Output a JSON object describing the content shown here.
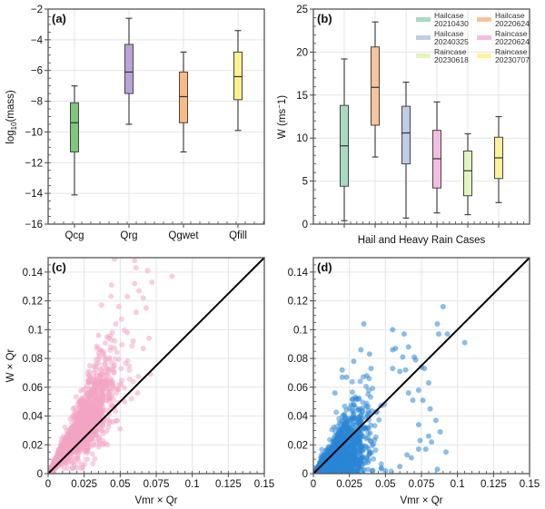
{
  "chart_data": [
    {
      "panel": "(a)",
      "type": "box",
      "title": "",
      "xlabel": "",
      "ylabel": "log10(mass)",
      "ylabel_main": "log",
      "ylabel_sub": "10",
      "ylabel_rest": "(mass)",
      "ylim": [
        -16,
        -2
      ],
      "yticks": [
        -16,
        -14,
        -12,
        -10,
        -8,
        -6,
        -4,
        -2
      ],
      "ytick_labels": [
        "−16",
        "−14",
        "−12",
        "−10",
        "−8",
        "−6",
        "−4",
        "−2"
      ],
      "grid": true,
      "categories": [
        "Qcg",
        "Qrg",
        "Qgwet",
        "Qfill"
      ],
      "boxes": [
        {
          "name": "Qcg",
          "whislo": -14.1,
          "q1": -11.3,
          "med": -9.4,
          "q3": -8.1,
          "whishi": -7.0,
          "color": "#7dc87a"
        },
        {
          "name": "Qrg",
          "whislo": -9.5,
          "q1": -7.5,
          "med": -6.1,
          "q3": -4.3,
          "whishi": -2.6,
          "color": "#b7a6d4"
        },
        {
          "name": "Qgwet",
          "whislo": -11.3,
          "q1": -9.4,
          "med": -7.7,
          "q3": -6.1,
          "whishi": -4.8,
          "color": "#f9bb84"
        },
        {
          "name": "Qfill",
          "whislo": -9.9,
          "q1": -7.9,
          "med": -6.4,
          "q3": -4.8,
          "whishi": -3.4,
          "color": "#fdf08f"
        }
      ]
    },
    {
      "panel": "(b)",
      "type": "box",
      "title": "",
      "xlabel": "Hail and Heavy Rain Cases",
      "ylabel": "W (ms⁻1)",
      "ylabel_main": "W (ms",
      "ylabel_sup": "−",
      "ylabel_rest": "1)",
      "ylim": [
        0,
        25
      ],
      "yticks": [
        0,
        5,
        10,
        15,
        20,
        25
      ],
      "ytick_labels": [
        "0",
        "5",
        "10",
        "15",
        "20",
        "25"
      ],
      "grid": true,
      "legend_position": "top-right",
      "boxes": [
        {
          "name": "Hailcase 20210430",
          "whislo": 0.4,
          "q1": 4.4,
          "med": 9.1,
          "q3": 13.8,
          "whishi": 19.2,
          "color": "#a8dcc0"
        },
        {
          "name": "Hailcase 20220624",
          "whislo": 7.8,
          "q1": 11.5,
          "med": 15.9,
          "q3": 20.6,
          "whishi": 23.5,
          "color": "#f9c39c"
        },
        {
          "name": "Hailcase 20240325",
          "whislo": 0.7,
          "q1": 7.0,
          "med": 10.6,
          "q3": 13.7,
          "whishi": 16.5,
          "color": "#c0cbe5"
        },
        {
          "name": "Raincase 20220624",
          "whislo": 1.3,
          "q1": 4.2,
          "med": 7.6,
          "q3": 10.9,
          "whishi": 14.2,
          "color": "#f3bde0"
        },
        {
          "name": "Raincase 20230618",
          "whislo": 1.1,
          "q1": 3.3,
          "med": 6.2,
          "q3": 8.5,
          "whishi": 10.5,
          "color": "#e3f4bf"
        },
        {
          "name": "Raincase 20230707",
          "whislo": 2.5,
          "q1": 5.3,
          "med": 7.7,
          "q3": 10.1,
          "whishi": 12.5,
          "color": "#fdf29a"
        }
      ],
      "legend": [
        {
          "line1": "Hailcase",
          "line2": "20210430",
          "color": "#a8dcc0"
        },
        {
          "line1": "Hailcase",
          "line2": "20220624",
          "color": "#f9c39c"
        },
        {
          "line1": "Hailcase",
          "line2": "20240325",
          "color": "#c0cbe5"
        },
        {
          "line1": "Raincase",
          "line2": "20220624",
          "color": "#f3bde0"
        },
        {
          "line1": "Raincase",
          "line2": "20230618",
          "color": "#e3f4bf"
        },
        {
          "line1": "Raincase",
          "line2": "20230707",
          "color": "#fdf29a"
        }
      ]
    },
    {
      "panel": "(c)",
      "type": "scatter",
      "xlabel": "Vmr × Qr",
      "ylabel": "W  × Qr",
      "xlim": [
        0,
        0.15
      ],
      "ylim": [
        0,
        0.15
      ],
      "xticks": [
        0,
        0.025,
        0.05,
        0.075,
        0.1,
        0.125,
        0.15
      ],
      "xtick_labels": [
        "0",
        "0.025",
        "0.05",
        "0.075",
        "0.1",
        "0.125",
        "0.15"
      ],
      "yticks": [
        0,
        0.02,
        0.04,
        0.06,
        0.08,
        0.1,
        0.12,
        0.14
      ],
      "ytick_labels": [
        "0",
        "0.02",
        "0.04",
        "0.06",
        "0.08",
        "0.1",
        "0.12",
        "0.14"
      ],
      "grid": true,
      "color": "#f4a3c4",
      "reference_line": {
        "x": [
          0,
          0.15
        ],
        "y": [
          0,
          0.15
        ],
        "color": "#000000"
      },
      "cloud": {
        "n": 1400,
        "x_mean": 0.022,
        "x_sd": 0.012,
        "x_max": 0.075,
        "slope": 1.45,
        "y_sd_frac": 0.28,
        "seed": 7
      },
      "points": [
        [
          0.046,
          0.149
        ],
        [
          0.06,
          0.148
        ],
        [
          0.061,
          0.143
        ],
        [
          0.069,
          0.141
        ],
        [
          0.086,
          0.137
        ],
        [
          0.044,
          0.131
        ],
        [
          0.072,
          0.133
        ],
        [
          0.06,
          0.132
        ],
        [
          0.063,
          0.127
        ],
        [
          0.066,
          0.122
        ],
        [
          0.037,
          0.117
        ],
        [
          0.055,
          0.123
        ],
        [
          0.049,
          0.116
        ],
        [
          0.061,
          0.112
        ],
        [
          0.068,
          0.115
        ],
        [
          0.035,
          0.096
        ],
        [
          0.041,
          0.095
        ],
        [
          0.07,
          0.094
        ],
        [
          0.066,
          0.087
        ],
        [
          0.047,
          0.104
        ],
        [
          0.055,
          0.098
        ],
        [
          0.059,
          0.092
        ],
        [
          0.034,
          0.087
        ],
        [
          0.029,
          0.075
        ],
        [
          0.032,
          0.07
        ],
        [
          0.071,
          0.069
        ],
        [
          0.062,
          0.056
        ],
        [
          0.053,
          0.05
        ],
        [
          0.05,
          0.031
        ],
        [
          0.045,
          0.036
        ],
        [
          0.041,
          0.02
        ],
        [
          0.038,
          0.02
        ],
        [
          0.027,
          0.01
        ],
        [
          0.02,
          0.004
        ],
        [
          0.017,
          0.004
        ]
      ]
    },
    {
      "panel": "(d)",
      "type": "scatter",
      "xlabel": "Vmr  × Qr",
      "ylabel": "",
      "xlim": [
        0,
        0.15
      ],
      "ylim": [
        0,
        0.15
      ],
      "xticks": [
        0,
        0.025,
        0.05,
        0.075,
        0.1,
        0.125,
        0.15
      ],
      "xtick_labels": [
        "0",
        "0.025",
        "0.05",
        "0.075",
        "0.1",
        "0.125",
        "0.15"
      ],
      "yticks": [
        0,
        0.02,
        0.04,
        0.06,
        0.08,
        0.1,
        0.12,
        0.14
      ],
      "ytick_labels": [
        "0",
        "0.02",
        "0.04",
        "0.06",
        "0.08",
        "0.1",
        "0.12",
        "0.14"
      ],
      "grid": true,
      "color": "#2a86d6",
      "reference_line": {
        "x": [
          0,
          0.15
        ],
        "y": [
          0,
          0.15
        ],
        "color": "#000000"
      },
      "cloud": {
        "n": 1600,
        "x_mean": 0.016,
        "x_sd": 0.011,
        "x_max": 0.06,
        "slope": 0.85,
        "y_sd_frac": 0.6,
        "seed": 11
      },
      "points": [
        [
          0.09,
          0.116
        ],
        [
          0.035,
          0.104
        ],
        [
          0.055,
          0.1
        ],
        [
          0.086,
          0.104
        ],
        [
          0.063,
          0.097
        ],
        [
          0.087,
          0.097
        ],
        [
          0.093,
          0.097
        ],
        [
          0.105,
          0.091
        ],
        [
          0.033,
          0.086
        ],
        [
          0.055,
          0.086
        ],
        [
          0.057,
          0.087
        ],
        [
          0.066,
          0.088
        ],
        [
          0.039,
          0.083
        ],
        [
          0.028,
          0.078
        ],
        [
          0.062,
          0.081
        ],
        [
          0.07,
          0.081
        ],
        [
          0.071,
          0.079
        ],
        [
          0.02,
          0.072
        ],
        [
          0.02,
          0.067
        ],
        [
          0.023,
          0.067
        ],
        [
          0.037,
          0.068
        ],
        [
          0.04,
          0.073
        ],
        [
          0.055,
          0.073
        ],
        [
          0.06,
          0.071
        ],
        [
          0.064,
          0.072
        ],
        [
          0.075,
          0.074
        ],
        [
          0.077,
          0.073
        ],
        [
          0.08,
          0.063
        ],
        [
          0.015,
          0.056
        ],
        [
          0.066,
          0.056
        ],
        [
          0.073,
          0.058
        ],
        [
          0.069,
          0.051
        ],
        [
          0.076,
          0.051
        ],
        [
          0.081,
          0.045
        ],
        [
          0.085,
          0.037
        ],
        [
          0.073,
          0.034
        ],
        [
          0.088,
          0.029
        ],
        [
          0.08,
          0.026
        ],
        [
          0.082,
          0.022
        ],
        [
          0.074,
          0.023
        ],
        [
          0.073,
          0.017
        ],
        [
          0.078,
          0.017
        ],
        [
          0.092,
          0.015
        ],
        [
          0.068,
          0.011
        ],
        [
          0.065,
          0.013
        ],
        [
          0.086,
          0.003
        ],
        [
          0.05,
          0.002
        ],
        [
          0.06,
          0.005
        ]
      ]
    }
  ]
}
